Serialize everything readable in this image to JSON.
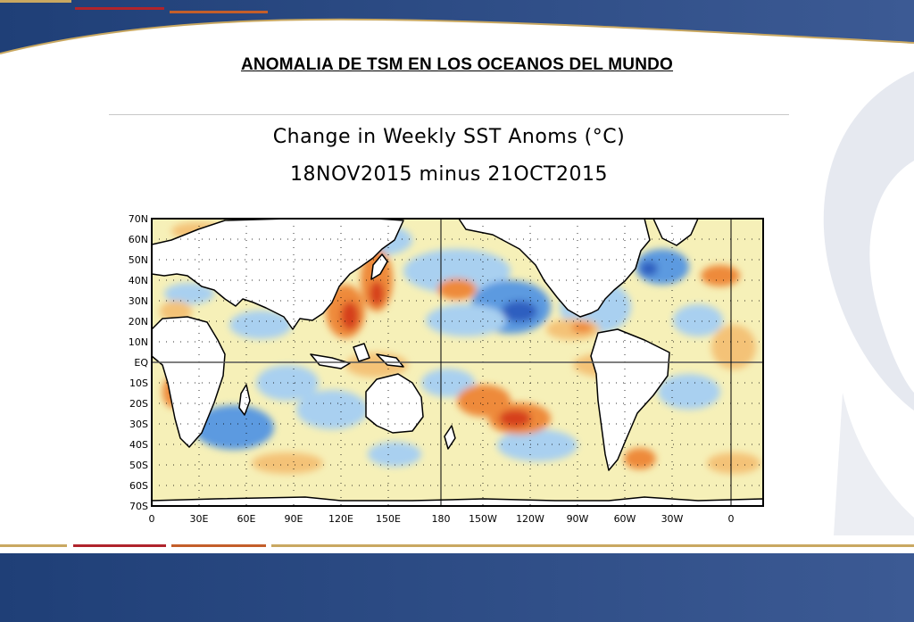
{
  "slide": {
    "title": "ANOMALIA DE TSM EN LOS OCEANOS DEL MUNDO"
  },
  "map": {
    "title_line1": "Change in Weekly SST Anoms (°C)",
    "title_line2": "18NOV2015 minus 21OCT2015",
    "lat_labels": [
      "70N",
      "60N",
      "50N",
      "40N",
      "30N",
      "20N",
      "10N",
      "EQ",
      "10S",
      "20S",
      "30S",
      "40S",
      "50S",
      "60S",
      "70S"
    ],
    "lon_labels": [
      "0",
      "30E",
      "60E",
      "90E",
      "120E",
      "150E",
      "180",
      "150W",
      "120W",
      "90W",
      "60W",
      "30W",
      "0"
    ],
    "colors": {
      "ocean_base": "#f6f0b8",
      "warm_1": "#f4c277",
      "warm_2": "#ee8a3a",
      "warm_3": "#d6401e",
      "cool_1": "#a9d0f0",
      "cool_2": "#5b9ae0",
      "cool_3": "#2f5fc0",
      "land": "#ffffff"
    }
  }
}
